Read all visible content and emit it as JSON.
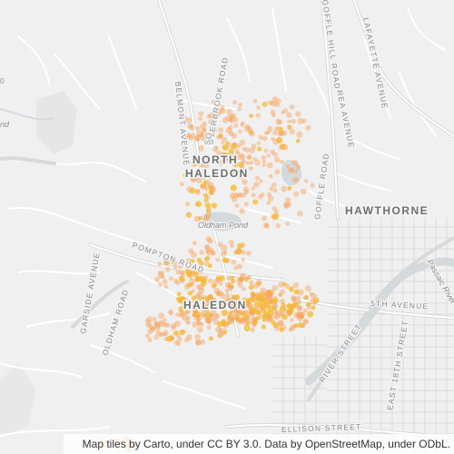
{
  "map": {
    "basemap": "light-gray street map",
    "colors": {
      "background": "#f0f0f0",
      "road": "#ffffff",
      "road_major": "#d9d9d9",
      "water": "#d4dadc",
      "point_outer": "#f7a15a",
      "point_inner": "#f5b82e"
    },
    "labels": {
      "north_haledon_1": "NORTH",
      "north_haledon_2": "HALEDON",
      "hawthorne": "HAWTHORNE",
      "haledon": "HALEDON",
      "oldham_pond": "Oldham Pond",
      "belmont_avenue": "BELMONT AVENUE",
      "overbrook_road": "OVERBROOK ROAD",
      "goffle_hill_road": "GOFFLE HILL ROAD",
      "lafayette_avenue": "LAFAYETTE AVENUE",
      "rea_avenue": "REA AVENUE",
      "goffle_road": "GOFFLE ROAD",
      "pompton_road": "POMPTON ROAD",
      "garside_avenue": "GARSIDE AVENUE",
      "oldham_road": "OLDHAM ROAD",
      "fifth_avenue": "5TH AVENUE",
      "river_street": "RIVER STREET",
      "east_18th_street": "EAST 18TH STREET",
      "ellison_street": "ELLISON STREET",
      "passaic_river": "Passaic River",
      "edge_fragment_top_left": "0",
      "edge_fragment_left": "nd",
      "edge_fragment_so": "SO"
    },
    "attribution": "Map tiles by Carto, under CC BY 3.0. Data by OpenStreetMap, under ODbL."
  }
}
